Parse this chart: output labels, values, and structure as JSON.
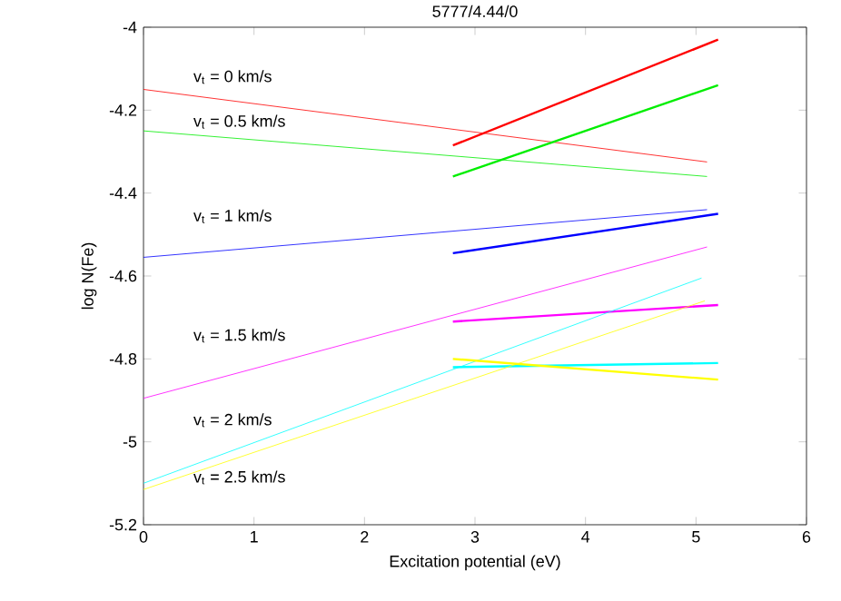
{
  "chart_data": {
    "type": "line",
    "title": "5777/4.44/0",
    "xlabel": "Excitation potential (eV)",
    "ylabel": "log N(Fe)",
    "xlim": [
      0,
      6
    ],
    "ylim": [
      -5.2,
      -4
    ],
    "xticks": [
      0,
      1,
      2,
      3,
      4,
      5,
      6
    ],
    "yticks": [
      -5.2,
      -5,
      -4.8,
      -4.6,
      -4.4,
      -4.2,
      -4
    ],
    "grid": false,
    "series": [
      {
        "color": "#ff0000",
        "x": [
          0,
          5.1
        ],
        "values": [
          -4.15,
          -4.325
        ]
      },
      {
        "color": "#ff0000",
        "x": [
          2.8,
          5.2
        ],
        "values": [
          -4.285,
          -4.03
        ]
      },
      {
        "color": "#00ee00",
        "x": [
          0,
          5.1
        ],
        "values": [
          -4.25,
          -4.36
        ]
      },
      {
        "color": "#00ee00",
        "x": [
          2.8,
          5.2
        ],
        "values": [
          -4.36,
          -4.14
        ]
      },
      {
        "color": "#0000ff",
        "x": [
          0,
          5.1
        ],
        "values": [
          -4.555,
          -4.44
        ]
      },
      {
        "color": "#0000ff",
        "x": [
          2.8,
          5.2
        ],
        "values": [
          -4.545,
          -4.45
        ]
      },
      {
        "color": "#ff00ff",
        "x": [
          0,
          5.1
        ],
        "values": [
          -4.895,
          -4.53
        ]
      },
      {
        "color": "#ff00ff",
        "x": [
          2.8,
          5.2
        ],
        "values": [
          -4.71,
          -4.67
        ]
      },
      {
        "color": "#00ffff",
        "x": [
          0,
          5.05
        ],
        "values": [
          -5.1,
          -4.605
        ]
      },
      {
        "color": "#00ffff",
        "x": [
          2.8,
          5.2
        ],
        "values": [
          -4.82,
          -4.81
        ]
      },
      {
        "color": "#ffff00",
        "x": [
          0,
          5.08
        ],
        "values": [
          -5.115,
          -4.66
        ]
      },
      {
        "color": "#ffff00",
        "x": [
          2.8,
          5.2
        ],
        "values": [
          -4.8,
          -4.85
        ]
      }
    ],
    "annotations": [
      "v$_{t}$ = 0 km/s",
      "v$_{t}$ = 0.5 km/s",
      "v$_{t}$ = 1 km/s",
      "v$_{t}$ = 1.5 km/s",
      "v$_{t}$ = 2 km/s",
      "v$_{t}$ = 2.5 km/s"
    ]
  }
}
